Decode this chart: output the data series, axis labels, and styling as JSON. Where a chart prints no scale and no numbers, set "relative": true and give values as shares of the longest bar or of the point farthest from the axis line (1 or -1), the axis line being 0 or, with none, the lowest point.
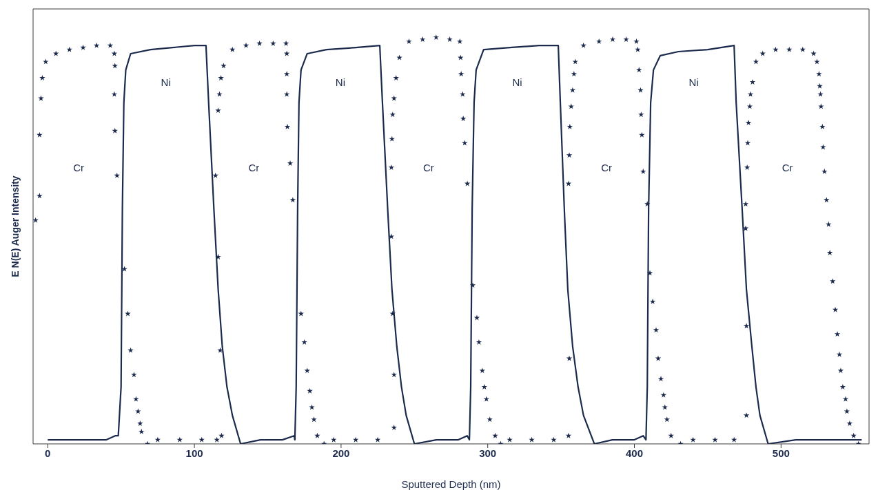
{
  "chart_data": {
    "type": "line",
    "xlabel": "Sputtered Depth (nm)",
    "ylabel": "E N(E) Auger Intensity",
    "relative": true,
    "xlim": [
      -10,
      560
    ],
    "xticks": [
      0,
      100,
      200,
      300,
      400,
      500
    ],
    "grid": false,
    "legend": false,
    "line_style": "solid",
    "series": [
      {
        "name": "Cr",
        "type": "scatter",
        "marker": "star",
        "color": "#1c2b4d",
        "x": [
          -8.3,
          -5.6,
          -5.6,
          -4.6,
          -3.7,
          -1.4,
          5.6,
          14.8,
          24.1,
          33.3,
          42.6,
          45.4,
          45.8,
          45.4,
          45.8,
          47.2,
          52.3,
          54.6,
          56.5,
          58.8,
          60.2,
          61.6,
          63,
          63.9,
          68,
          75,
          90,
          105,
          115.3,
          118.5,
          117.6,
          116.2,
          114.4,
          116.2,
          117.1,
          118.1,
          119.9,
          125.9,
          135.2,
          144.4,
          153.7,
          162.5,
          163,
          163,
          163,
          163.4,
          165.3,
          167.1,
          172.7,
          175,
          176.9,
          178.7,
          180.1,
          181.5,
          183.8,
          188.4,
          195,
          210,
          225,
          236.1,
          236.1,
          235.2,
          234.3,
          234.3,
          234.7,
          235.2,
          236.1,
          237.5,
          239.8,
          246.3,
          255.6,
          264.8,
          274.1,
          281,
          281.5,
          281.9,
          282.9,
          283.3,
          284.3,
          286.1,
          289.8,
          292.6,
          294,
          296.3,
          297.7,
          299.1,
          301.4,
          305.1,
          308.8,
          315,
          330,
          345,
          355.1,
          355.6,
          355.1,
          355.6,
          356,
          356.9,
          357.9,
          358.8,
          359.7,
          365.3,
          375.9,
          385.2,
          394.4,
          401.4,
          402.3,
          403.2,
          404.2,
          404.6,
          405.1,
          406,
          408.8,
          410.6,
          412.5,
          414.8,
          416.2,
          418.1,
          419.9,
          420.8,
          422.2,
          425,
          431.5,
          440,
          455,
          468,
          476.4,
          476.4,
          475.9,
          475.9,
          476.9,
          477.3,
          477.8,
          478.7,
          479.2,
          480.6,
          482.9,
          487.5,
          496.3,
          505.6,
          514.8,
          522.2,
          524.5,
          525.9,
          526.4,
          526.9,
          527.3,
          528.2,
          528.7,
          529.6,
          531,
          532.4,
          533.3,
          535.2,
          537,
          538.4,
          539.8,
          540.7,
          542.1,
          544,
          544.9,
          546.8,
          549.5,
          552.8
        ],
        "values": [
          0.55,
          0.61,
          0.76,
          0.85,
          0.9,
          0.94,
          0.96,
          0.97,
          0.975,
          0.98,
          0.98,
          0.96,
          0.93,
          0.86,
          0.77,
          0.66,
          0.43,
          0.32,
          0.23,
          0.17,
          0.11,
          0.08,
          0.05,
          0.03,
          0,
          0.01,
          0.01,
          0.01,
          0.01,
          0.02,
          0.23,
          0.46,
          0.66,
          0.82,
          0.86,
          0.9,
          0.93,
          0.97,
          0.98,
          0.985,
          0.985,
          0.985,
          0.96,
          0.91,
          0.86,
          0.78,
          0.69,
          0.6,
          0.32,
          0.25,
          0.18,
          0.13,
          0.09,
          0.06,
          0.02,
          0,
          0.01,
          0.01,
          0.01,
          0.04,
          0.17,
          0.32,
          0.51,
          0.68,
          0.75,
          0.81,
          0.85,
          0.9,
          0.95,
          0.99,
          0.995,
          1,
          0.995,
          0.99,
          0.95,
          0.91,
          0.86,
          0.8,
          0.74,
          0.64,
          0.39,
          0.31,
          0.25,
          0.18,
          0.14,
          0.11,
          0.06,
          0.02,
          0,
          0.01,
          0.01,
          0.01,
          0.02,
          0.21,
          0.64,
          0.71,
          0.78,
          0.83,
          0.87,
          0.91,
          0.94,
          0.98,
          0.99,
          0.995,
          0.995,
          0.99,
          0.97,
          0.92,
          0.87,
          0.81,
          0.76,
          0.67,
          0.59,
          0.42,
          0.35,
          0.28,
          0.21,
          0.16,
          0.12,
          0.09,
          0.06,
          0.02,
          0,
          0.01,
          0.01,
          0.01,
          0.07,
          0.29,
          0.53,
          0.59,
          0.68,
          0.74,
          0.79,
          0.83,
          0.86,
          0.89,
          0.94,
          0.96,
          0.97,
          0.97,
          0.97,
          0.96,
          0.94,
          0.91,
          0.88,
          0.86,
          0.83,
          0.78,
          0.73,
          0.67,
          0.6,
          0.54,
          0.47,
          0.4,
          0.33,
          0.27,
          0.22,
          0.18,
          0.14,
          0.11,
          0.08,
          0.05,
          0.02,
          0
        ]
      },
      {
        "name": "Ni",
        "type": "line",
        "marker": "none",
        "color": "#1c2b4d",
        "x": [
          0,
          20,
          40,
          46,
          48.1,
          50,
          50.9,
          51.9,
          53.2,
          56.5,
          70,
          85,
          100,
          107.9,
          109.7,
          113.4,
          116.2,
          119,
          122.2,
          125.9,
          131.5,
          145,
          160,
          168,
          168.5,
          169.4,
          170.4,
          171.3,
          172.7,
          176.9,
          190,
          210,
          226.4,
          228.2,
          231.9,
          234.7,
          238,
          241.2,
          244.4,
          250,
          265,
          280,
          286,
          287.5,
          288.4,
          289.4,
          290.7,
          292.1,
          297.2,
          315,
          335,
          348.1,
          349.5,
          352.3,
          354.6,
          357.9,
          361.6,
          365.3,
          372.7,
          385,
          400,
          406,
          407.9,
          408.8,
          409.7,
          411.1,
          413,
          417.6,
          430,
          450,
          468,
          469.4,
          473.6,
          476.4,
          480.1,
          482.9,
          485.6,
          491.2,
          510,
          530,
          555
        ],
        "values": [
          0.01,
          0.01,
          0.01,
          0.02,
          0.02,
          0.14,
          0.58,
          0.84,
          0.92,
          0.96,
          0.97,
          0.975,
          0.98,
          0.98,
          0.84,
          0.57,
          0.38,
          0.24,
          0.14,
          0.07,
          0,
          0.01,
          0.01,
          0.02,
          0.01,
          0.14,
          0.58,
          0.84,
          0.92,
          0.96,
          0.97,
          0.975,
          0.98,
          0.84,
          0.57,
          0.38,
          0.24,
          0.14,
          0.07,
          0,
          0.01,
          0.01,
          0.02,
          0.01,
          0.14,
          0.58,
          0.84,
          0.92,
          0.97,
          0.975,
          0.98,
          0.98,
          0.84,
          0.57,
          0.38,
          0.24,
          0.14,
          0.07,
          0,
          0.01,
          0.01,
          0.02,
          0.01,
          0.14,
          0.58,
          0.84,
          0.92,
          0.955,
          0.965,
          0.97,
          0.98,
          0.84,
          0.57,
          0.38,
          0.24,
          0.14,
          0.07,
          0,
          0.01,
          0.01,
          0.01
        ]
      }
    ]
  }
}
